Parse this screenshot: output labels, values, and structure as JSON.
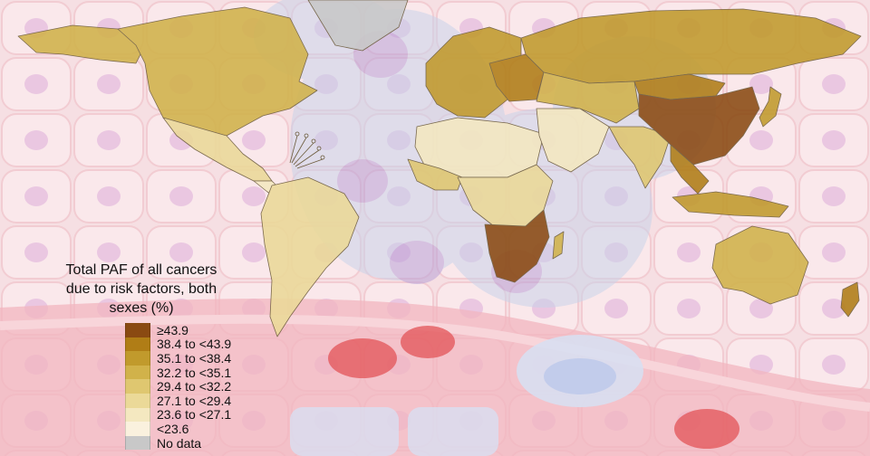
{
  "legend": {
    "title_lines": [
      "Total PAF of all cancers",
      "due to risk factors, both",
      "sexes (%)"
    ],
    "items": [
      {
        "label": "≥43.9",
        "color": "#8a4a12"
      },
      {
        "label": "38.4  to <43.9",
        "color": "#b07d16"
      },
      {
        "label": "35.1  to <38.4",
        "color": "#c19a2c"
      },
      {
        "label": "32.2  to <35.1",
        "color": "#d1b24a"
      },
      {
        "label": "29.4  to <32.2",
        "color": "#dfc770"
      },
      {
        "label": "27.1  to <29.4",
        "color": "#ebd998"
      },
      {
        "label": "23.6  to <27.1",
        "color": "#f4e8c0"
      },
      {
        "label": "<23.6",
        "color": "#faf1de"
      },
      {
        "label": "No data",
        "color": "#c8c8c8"
      }
    ]
  },
  "map": {
    "ocean_color": "#f6dfe3",
    "cell_color": "#fbe9ec",
    "nucleus_color": "#d9a4d8",
    "vessel_color": "#f2b6bf",
    "blood_cell_color": "#e45a5e",
    "regions": [
      {
        "name": "North America",
        "color": "#d1b24a"
      },
      {
        "name": "Alaska",
        "color": "#d1b24a"
      },
      {
        "name": "Greenland",
        "color": "#c8c8c8"
      },
      {
        "name": "Mexico",
        "color": "#ebd998"
      },
      {
        "name": "Central America",
        "color": "#f4e8c0"
      },
      {
        "name": "South America",
        "color": "#ebd998"
      },
      {
        "name": "Europe",
        "color": "#c19a2c"
      },
      {
        "name": "Eastern Europe",
        "color": "#b07d16"
      },
      {
        "name": "Russia",
        "color": "#c19a2c"
      },
      {
        "name": "North Africa",
        "color": "#f4e8c0"
      },
      {
        "name": "West Africa",
        "color": "#dfc770"
      },
      {
        "name": "Central Africa",
        "color": "#ebd998"
      },
      {
        "name": "Southern Africa",
        "color": "#8a4a12"
      },
      {
        "name": "Madagascar",
        "color": "#d1b24a"
      },
      {
        "name": "Middle East",
        "color": "#f4e8c0"
      },
      {
        "name": "Central Asia",
        "color": "#d1b24a"
      },
      {
        "name": "India",
        "color": "#dfc770"
      },
      {
        "name": "China",
        "color": "#8a4a12"
      },
      {
        "name": "Mongolia",
        "color": "#b07d16"
      },
      {
        "name": "Southeast Asia",
        "color": "#b07d16"
      },
      {
        "name": "Japan",
        "color": "#c19a2c"
      },
      {
        "name": "Indonesia",
        "color": "#c19a2c"
      },
      {
        "name": "Australia",
        "color": "#d1b24a"
      },
      {
        "name": "New Zealand",
        "color": "#b07d16"
      }
    ]
  }
}
